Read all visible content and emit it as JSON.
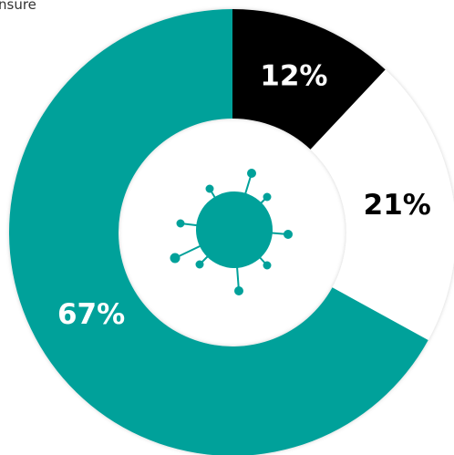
{
  "chart_data": {
    "type": "donut",
    "annotation": "nsure",
    "values": [
      12,
      21,
      67
    ],
    "value_labels": [
      "12%",
      "21%",
      "67%"
    ],
    "colors": [
      "#000000",
      "#ffffff",
      "#00a19a"
    ],
    "label_colors": [
      "#ffffff",
      "#000000",
      "#ffffff"
    ]
  }
}
